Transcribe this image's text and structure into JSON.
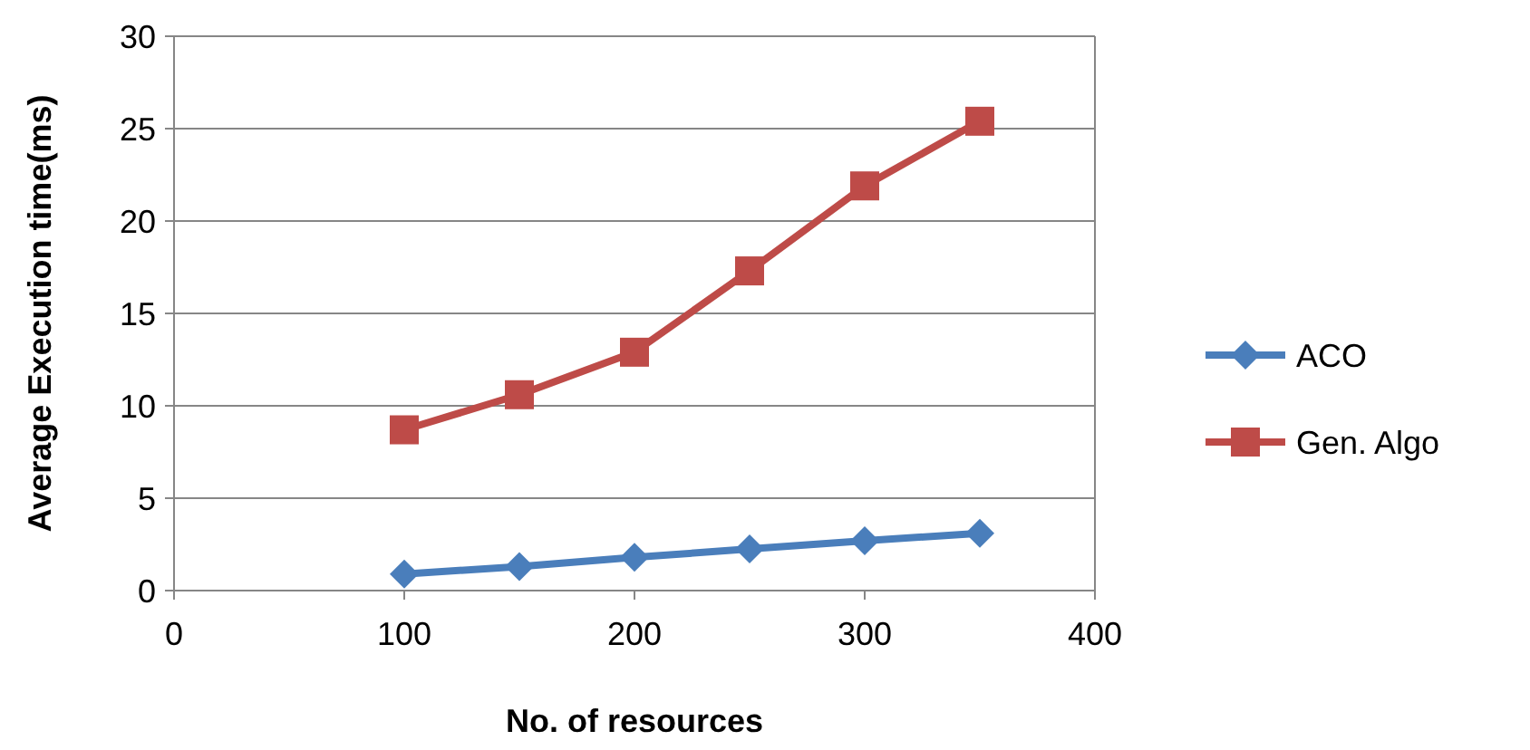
{
  "chart_data": {
    "type": "line",
    "xlabel": "No. of resources",
    "ylabel": "Average Execution time(ms)",
    "x": [
      100,
      150,
      200,
      250,
      300,
      350
    ],
    "series": [
      {
        "name": "ACO",
        "color": "#4a7ebb",
        "values": [
          0.9,
          1.3,
          1.8,
          2.25,
          2.7,
          3.1
        ],
        "marker": "diamond"
      },
      {
        "name": "Gen. Algo",
        "color": "#be4b48",
        "values": [
          8.7,
          10.6,
          12.9,
          17.3,
          21.9,
          25.4
        ],
        "marker": "square"
      }
    ],
    "xlim": [
      0,
      400
    ],
    "xticks": [
      0,
      100,
      200,
      300,
      400
    ],
    "ylim": [
      0,
      30
    ],
    "yticks": [
      0,
      5,
      10,
      15,
      20,
      25,
      30
    ],
    "grid": "y",
    "legend": "right",
    "line_style": "solid"
  }
}
